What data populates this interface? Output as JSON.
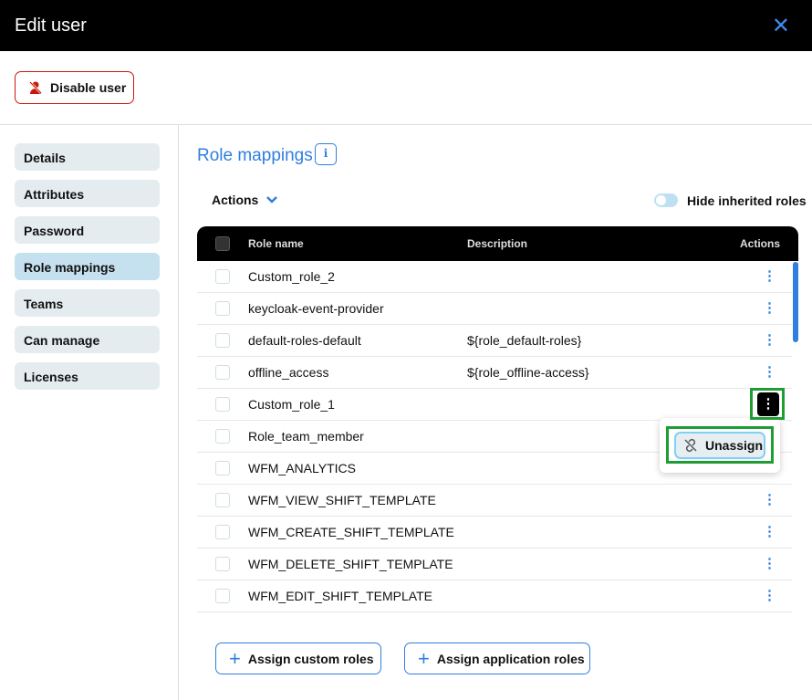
{
  "header": {
    "title": "Edit user",
    "close_icon": "close-icon"
  },
  "disable_button": "Disable user",
  "sidebar": {
    "items": [
      {
        "label": "Details"
      },
      {
        "label": "Attributes"
      },
      {
        "label": "Password"
      },
      {
        "label": "Role mappings",
        "active": true
      },
      {
        "label": "Teams"
      },
      {
        "label": "Can manage"
      },
      {
        "label": "Licenses"
      }
    ]
  },
  "main": {
    "title": "Role mappings",
    "actions_label": "Actions",
    "hide_inherited_label": "Hide inherited roles",
    "hide_inherited_on": false,
    "columns": [
      "Role name",
      "Description",
      "Actions"
    ],
    "rows": [
      {
        "name": "Custom_role_2",
        "description": ""
      },
      {
        "name": "keycloak-event-provider",
        "description": ""
      },
      {
        "name": "default-roles-default",
        "description": "${role_default-roles}"
      },
      {
        "name": "offline_access",
        "description": "${role_offline-access}"
      },
      {
        "name": "Custom_role_1",
        "description": ""
      },
      {
        "name": "Role_team_member",
        "description": ""
      },
      {
        "name": "WFM_ANALYTICS",
        "description": ""
      },
      {
        "name": "WFM_VIEW_SHIFT_TEMPLATE",
        "description": ""
      },
      {
        "name": "WFM_CREATE_SHIFT_TEMPLATE",
        "description": ""
      },
      {
        "name": "WFM_DELETE_SHIFT_TEMPLATE",
        "description": ""
      },
      {
        "name": "WFM_EDIT_SHIFT_TEMPLATE",
        "description": ""
      }
    ],
    "menu": {
      "unassign": "Unassign"
    },
    "assign_custom": "Assign custom roles",
    "assign_application": "Assign application roles"
  },
  "colors": {
    "accent": "#2f7fe0",
    "danger": "#c9190b",
    "highlight": "#1f9d33"
  }
}
